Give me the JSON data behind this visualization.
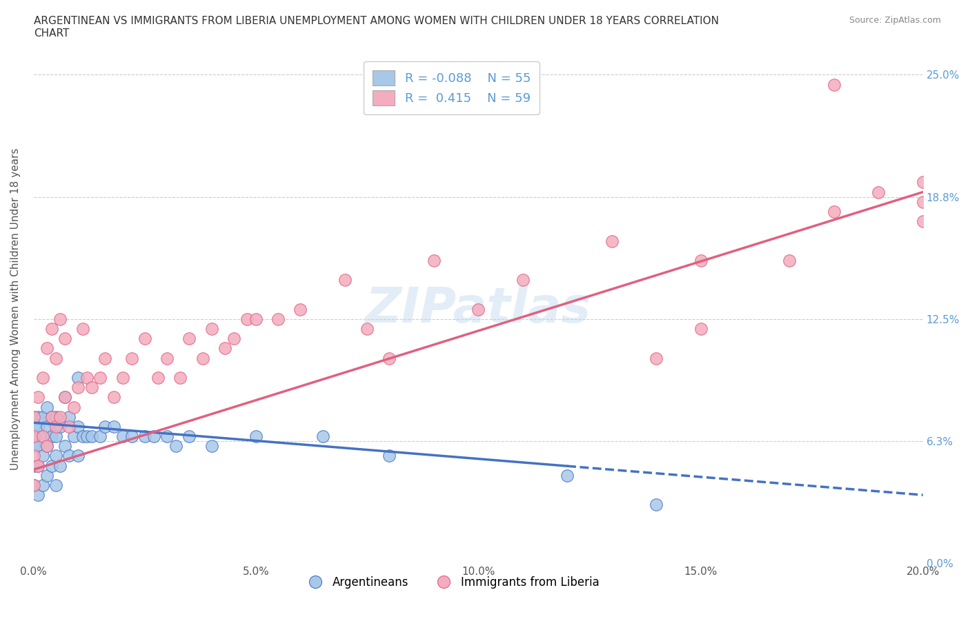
{
  "title": "ARGENTINEAN VS IMMIGRANTS FROM LIBERIA UNEMPLOYMENT AMONG WOMEN WITH CHILDREN UNDER 18 YEARS CORRELATION\nCHART",
  "source": "Source: ZipAtlas.com",
  "ylabel": "Unemployment Among Women with Children Under 18 years",
  "xlim": [
    0.0,
    0.2
  ],
  "ylim": [
    0.0,
    0.26
  ],
  "x_ticks": [
    0.0,
    0.05,
    0.1,
    0.15,
    0.2
  ],
  "x_tick_labels": [
    "0.0%",
    "5.0%",
    "10.0%",
    "15.0%",
    "20.0%"
  ],
  "y_ticks": [
    0.0,
    0.0625,
    0.125,
    0.1875,
    0.25
  ],
  "y_tick_labels": [
    "0.0%",
    "6.3%",
    "12.5%",
    "18.8%",
    "25.0%"
  ],
  "blue_color": "#A8C8E8",
  "pink_color": "#F4ACBE",
  "blue_line_color": "#4472C4",
  "pink_line_color": "#E06080",
  "legend_R1": "-0.088",
  "legend_N1": "55",
  "legend_R2": "0.415",
  "legend_N2": "59",
  "label1": "Argentineans",
  "label2": "Immigrants from Liberia",
  "watermark": "ZIPatlas",
  "blue_line_y0": 0.072,
  "blue_line_y1": 0.035,
  "pink_line_y0": 0.048,
  "pink_line_y1": 0.19,
  "blue_scatter_x": [
    0.0,
    0.0,
    0.0,
    0.0,
    0.0,
    0.0,
    0.001,
    0.001,
    0.001,
    0.001,
    0.001,
    0.002,
    0.002,
    0.002,
    0.002,
    0.003,
    0.003,
    0.003,
    0.003,
    0.004,
    0.004,
    0.004,
    0.005,
    0.005,
    0.005,
    0.005,
    0.006,
    0.006,
    0.007,
    0.007,
    0.008,
    0.008,
    0.009,
    0.01,
    0.01,
    0.01,
    0.011,
    0.012,
    0.013,
    0.015,
    0.016,
    0.018,
    0.02,
    0.022,
    0.025,
    0.027,
    0.03,
    0.032,
    0.035,
    0.04,
    0.05,
    0.065,
    0.08,
    0.12,
    0.14
  ],
  "blue_scatter_y": [
    0.04,
    0.05,
    0.06,
    0.065,
    0.07,
    0.075,
    0.035,
    0.05,
    0.06,
    0.07,
    0.075,
    0.04,
    0.055,
    0.065,
    0.075,
    0.045,
    0.06,
    0.07,
    0.08,
    0.05,
    0.065,
    0.075,
    0.04,
    0.055,
    0.065,
    0.075,
    0.05,
    0.07,
    0.06,
    0.085,
    0.055,
    0.075,
    0.065,
    0.055,
    0.07,
    0.095,
    0.065,
    0.065,
    0.065,
    0.065,
    0.07,
    0.07,
    0.065,
    0.065,
    0.065,
    0.065,
    0.065,
    0.06,
    0.065,
    0.06,
    0.065,
    0.065,
    0.055,
    0.045,
    0.03
  ],
  "pink_scatter_x": [
    0.0,
    0.0,
    0.0,
    0.0,
    0.001,
    0.001,
    0.002,
    0.002,
    0.003,
    0.003,
    0.004,
    0.004,
    0.005,
    0.005,
    0.006,
    0.006,
    0.007,
    0.007,
    0.008,
    0.009,
    0.01,
    0.011,
    0.012,
    0.013,
    0.015,
    0.016,
    0.018,
    0.02,
    0.022,
    0.025,
    0.028,
    0.03,
    0.033,
    0.035,
    0.038,
    0.04,
    0.043,
    0.045,
    0.048,
    0.05,
    0.055,
    0.06,
    0.07,
    0.075,
    0.08,
    0.09,
    0.1,
    0.11,
    0.13,
    0.14,
    0.15,
    0.17,
    0.18,
    0.19,
    0.2,
    0.2,
    0.2,
    0.18,
    0.15
  ],
  "pink_scatter_y": [
    0.04,
    0.055,
    0.065,
    0.075,
    0.05,
    0.085,
    0.065,
    0.095,
    0.06,
    0.11,
    0.075,
    0.12,
    0.07,
    0.105,
    0.075,
    0.125,
    0.085,
    0.115,
    0.07,
    0.08,
    0.09,
    0.12,
    0.095,
    0.09,
    0.095,
    0.105,
    0.085,
    0.095,
    0.105,
    0.115,
    0.095,
    0.105,
    0.095,
    0.115,
    0.105,
    0.12,
    0.11,
    0.115,
    0.125,
    0.125,
    0.125,
    0.13,
    0.145,
    0.12,
    0.105,
    0.155,
    0.13,
    0.145,
    0.165,
    0.105,
    0.155,
    0.155,
    0.18,
    0.19,
    0.175,
    0.185,
    0.195,
    0.245,
    0.12
  ]
}
